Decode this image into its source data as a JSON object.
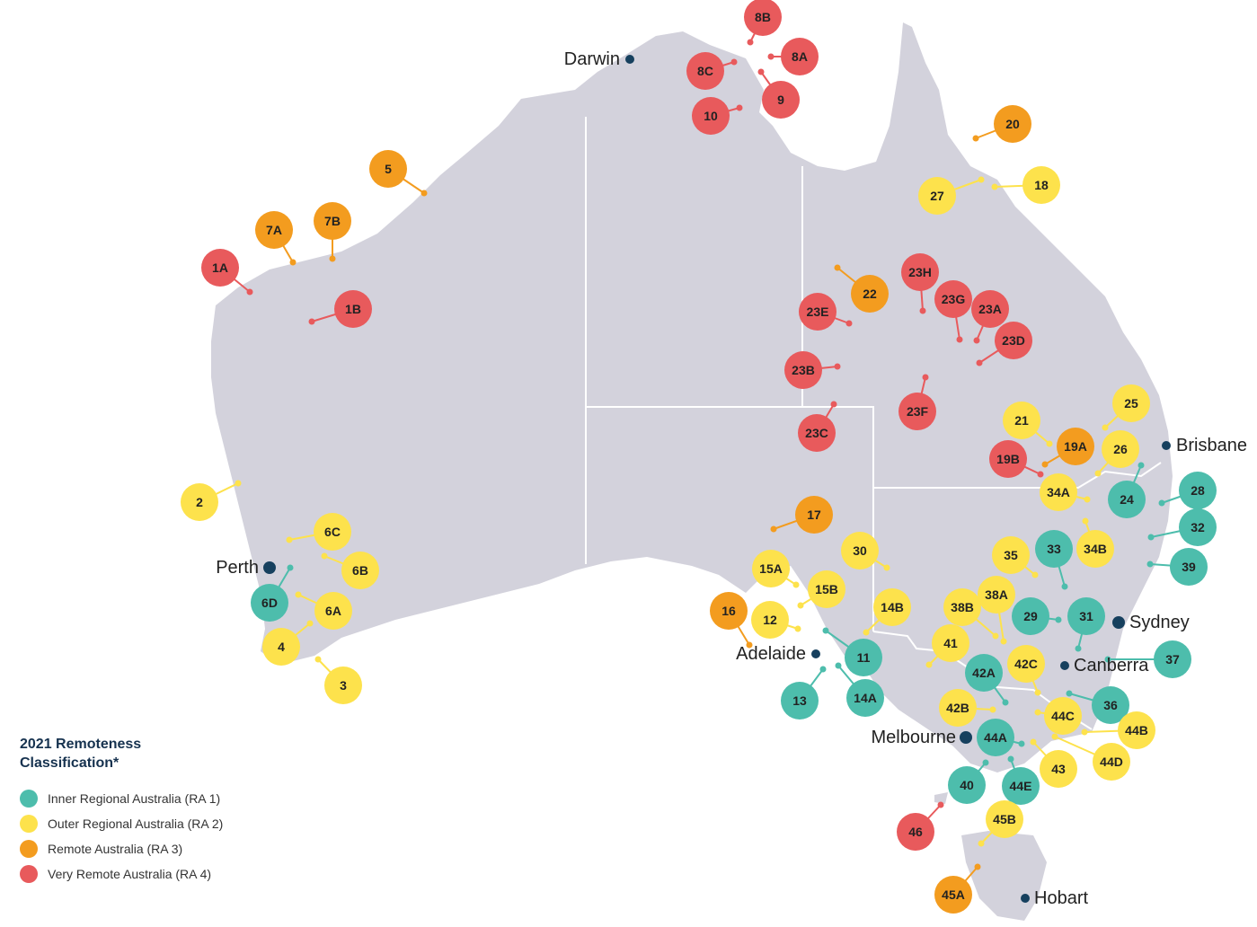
{
  "cities": [
    "Darwin",
    "Brisbane",
    "Perth",
    "Sydney",
    "Adelaide",
    "Canberra",
    "Melbourne",
    "Hobart"
  ],
  "legend": {
    "title": "2021 Remoteness Classification*",
    "items": [
      {
        "label": "Inner Regional Australia (RA 1)",
        "color": "#4dbdac",
        "markers": [
          "6D",
          "24",
          "28",
          "32",
          "39",
          "33",
          "29",
          "31",
          "37",
          "11",
          "13",
          "14A",
          "42A",
          "36",
          "44A",
          "40",
          "44E"
        ]
      },
      {
        "label": "Outer Regional Australia (RA 2)",
        "color": "#fde24c",
        "markers": [
          "2",
          "6C",
          "6B",
          "6A",
          "4",
          "3",
          "27",
          "18",
          "25",
          "21",
          "26",
          "34A",
          "34B",
          "30",
          "35",
          "15A",
          "15B",
          "12",
          "14B",
          "38B",
          "38A",
          "41",
          "42C",
          "42B",
          "44C",
          "44B",
          "44D",
          "43",
          "45B"
        ]
      },
      {
        "label": "Remote Australia (RA 3)",
        "color": "#f39c1f",
        "markers": [
          "5",
          "7A",
          "7B",
          "20",
          "22",
          "19A",
          "17",
          "16",
          "45A"
        ]
      },
      {
        "label": "Very Remote Australia (RA 4)",
        "color": "#e85a5c",
        "markers": [
          "8B",
          "8A",
          "8C",
          "9",
          "10",
          "1A",
          "1B",
          "23H",
          "23G",
          "23A",
          "23D",
          "23E",
          "23B",
          "23F",
          "23C",
          "19B",
          "46"
        ]
      }
    ]
  }
}
